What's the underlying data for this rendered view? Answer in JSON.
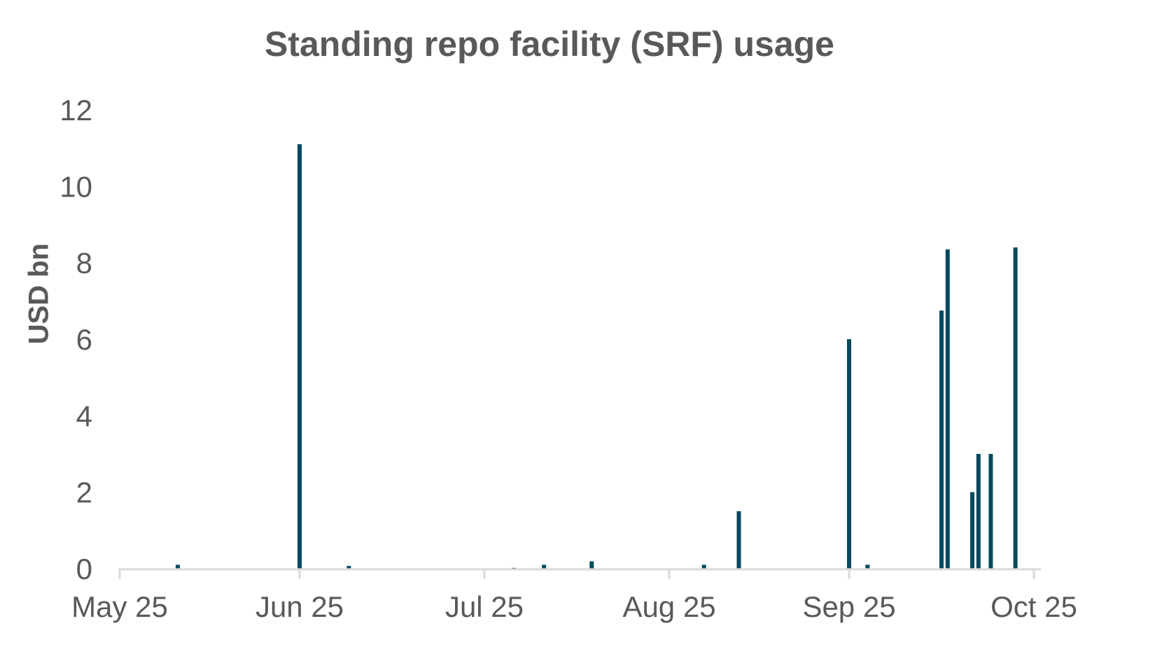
{
  "chart_data": {
    "type": "bar",
    "title": "Standing repo facility (SRF) usage",
    "xlabel": "",
    "ylabel": "USD bn",
    "ylim": [
      0,
      12
    ],
    "yticks": [
      0,
      2,
      4,
      6,
      8,
      10,
      12
    ],
    "xticks": [
      {
        "label": "May 25",
        "date": "2025-05-25"
      },
      {
        "label": "Jun 25",
        "date": "2025-06-25"
      },
      {
        "label": "Jul 25",
        "date": "2025-07-25"
      },
      {
        "label": "Aug 25",
        "date": "2025-08-25"
      },
      {
        "label": "Sep 25",
        "date": "2025-09-25"
      },
      {
        "label": "Oct 25",
        "date": "2025-10-25"
      }
    ],
    "xlim": [
      "2025-05-25",
      "2025-10-25"
    ],
    "grid": false,
    "legend": null,
    "bar_color": "#004a5e",
    "series": [
      {
        "name": "SRF usage",
        "points": [
          {
            "date": "2025-06-04",
            "value": 0.1
          },
          {
            "date": "2025-06-25",
            "value": 11.1
          },
          {
            "date": "2025-07-03",
            "value": 0.07
          },
          {
            "date": "2025-07-30",
            "value": 0.02
          },
          {
            "date": "2025-08-04",
            "value": 0.1
          },
          {
            "date": "2025-08-12",
            "value": 0.19
          },
          {
            "date": "2025-08-31",
            "value": 0.1
          },
          {
            "date": "2025-09-06",
            "value": 1.5
          },
          {
            "date": "2025-09-25",
            "value": 6.0
          },
          {
            "date": "2025-09-28",
            "value": 0.1
          },
          {
            "date": "2025-10-10",
            "value": 6.75
          },
          {
            "date": "2025-10-11",
            "value": 8.35
          },
          {
            "date": "2025-10-15",
            "value": 2.0
          },
          {
            "date": "2025-10-16",
            "value": 3.0
          },
          {
            "date": "2025-10-18",
            "value": 3.0
          },
          {
            "date": "2025-10-22",
            "value": 8.4
          }
        ]
      }
    ]
  }
}
